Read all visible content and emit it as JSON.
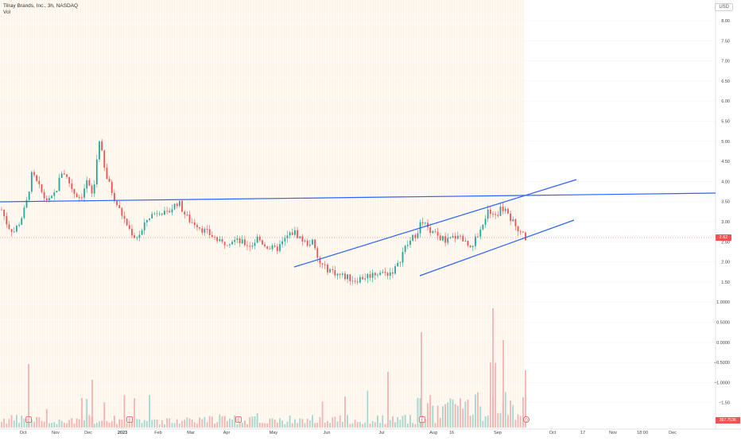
{
  "header": {
    "title": "Tilray Brands, Inc., 3h, NASDAQ",
    "indicator": "Vol"
  },
  "currency": "USD",
  "price_label": "2.62",
  "volume_label": "367.753K",
  "chart_data": {
    "type": "candlestick",
    "y_axis_ticks": [
      "8.00",
      "7.50",
      "7.00",
      "6.50",
      "6.00",
      "5.50",
      "5.00",
      "4.50",
      "4.00",
      "3.50",
      "3.00",
      "2.50",
      "2.00",
      "1.50",
      "1.0000",
      "0.5000",
      "0.0000",
      "−0.5000",
      "−1.0000",
      "−1.50"
    ],
    "x_axis_ticks": [
      "Oct",
      "Nov",
      "Dec",
      "2023",
      "Feb",
      "Mar",
      "Apr",
      "May",
      "Jun",
      "Jul",
      "Aug",
      "16",
      "Sep",
      "Oct",
      "17",
      "Nov",
      "18:00",
      "Dec"
    ],
    "ylim": [
      -1.6,
      8.3
    ],
    "last_price": 2.62,
    "close_series": [
      3.3,
      2.9,
      2.75,
      3.0,
      3.4,
      4.2,
      3.9,
      3.6,
      3.5,
      3.8,
      4.3,
      4.0,
      3.7,
      3.6,
      4.0,
      3.6,
      5.1,
      4.2,
      3.8,
      3.4,
      3.1,
      2.8,
      2.6,
      2.75,
      3.1,
      3.2,
      3.3,
      3.15,
      3.35,
      3.5,
      3.2,
      3.0,
      2.95,
      2.8,
      2.7,
      2.6,
      2.45,
      2.5,
      2.55,
      2.5,
      2.45,
      2.4,
      2.6,
      2.45,
      2.35,
      2.3,
      2.45,
      2.65,
      2.75,
      2.6,
      2.45,
      2.5,
      2.0,
      1.85,
      1.8,
      1.7,
      1.65,
      1.6,
      1.55,
      1.6,
      1.65,
      1.7,
      1.75,
      1.7,
      1.75,
      1.9,
      2.3,
      2.5,
      2.7,
      3.0,
      2.8,
      2.7,
      2.6,
      2.5,
      2.6,
      2.7,
      2.5,
      2.4,
      2.6,
      3.0,
      3.3,
      3.1,
      3.35,
      3.2,
      3.0,
      2.8,
      2.62
    ],
    "trendlines": [
      {
        "name": "horizontal-resistance",
        "from": [
          "Sep 2022",
          3.5
        ],
        "to": [
          "Oct 2023",
          3.7
        ]
      },
      {
        "name": "channel-upper",
        "from": [
          "mid May 2023",
          1.9
        ],
        "to": [
          "late Sep 2023",
          4.1
        ]
      },
      {
        "name": "channel-lower",
        "from": [
          "late Jul 2023",
          1.65
        ],
        "to": [
          "late Sep 2023",
          3.05
        ]
      }
    ],
    "event_markers": [
      "E",
      "E",
      "E",
      "E",
      "D"
    ],
    "colors": {
      "up": "#26a69a",
      "down": "#ef5350",
      "trend": "#2962ff",
      "grid": "#f0f3fa",
      "session_bg": "#fdf1e3"
    }
  }
}
